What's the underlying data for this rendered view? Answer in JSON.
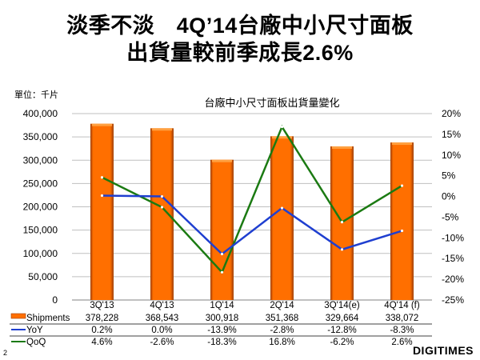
{
  "slide": {
    "title_line1": "淡季不淡　4Q’14台廠中小尺寸面板",
    "title_line2": "出貨量較前季成長2.6%",
    "unit_label": "單位：千片",
    "page_number": "2",
    "logo": "DIGITIMES"
  },
  "colors": {
    "bar": "#FF6F00",
    "bar_edge": "#A04000",
    "yoy": "#1F3FD0",
    "qoq": "#1B7A12",
    "grid": "#BFBFBF"
  },
  "chart_data": {
    "type": "bar",
    "title": "台廠中小尺寸面板出貨量變化",
    "categories": [
      "3Q'13",
      "4Q'13",
      "1Q'14",
      "2Q'14",
      "3Q'14(e)",
      "4Q'14 (f)"
    ],
    "series": [
      {
        "name": "Shipments",
        "type": "bar",
        "axis": "left",
        "values": [
          378228,
          368543,
          300918,
          351368,
          329664,
          338072
        ],
        "labels": [
          "378,228",
          "368,543",
          "300,918",
          "351,368",
          "329,664",
          "338,072"
        ]
      },
      {
        "name": "YoY",
        "type": "line",
        "axis": "right",
        "values": [
          0.2,
          0.0,
          -13.9,
          -2.8,
          -12.8,
          -8.3
        ],
        "labels": [
          "0.2%",
          "0.0%",
          "-13.9%",
          "-2.8%",
          "-12.8%",
          "-8.3%"
        ]
      },
      {
        "name": "QoQ",
        "type": "line",
        "axis": "right",
        "values": [
          4.6,
          -2.6,
          -18.3,
          16.8,
          -6.2,
          2.6
        ],
        "labels": [
          "4.6%",
          "-2.6%",
          "-18.3%",
          "16.8%",
          "-6.2%",
          "2.6%"
        ]
      }
    ],
    "ylabel": "單位：千片",
    "ylim": [
      0,
      400000
    ],
    "y_ticks": [
      "400,000",
      "350,000",
      "300,000",
      "250,000",
      "200,000",
      "150,000",
      "100,000",
      "50,000",
      "0"
    ],
    "y2lim": [
      -25,
      20
    ],
    "y2_ticks": [
      "20%",
      "15%",
      "10%",
      "5%",
      "0%",
      "-5%",
      "-10%",
      "-15%",
      "-20%",
      "-25%"
    ],
    "grid": true,
    "legend_position": "data-table-bottom"
  }
}
